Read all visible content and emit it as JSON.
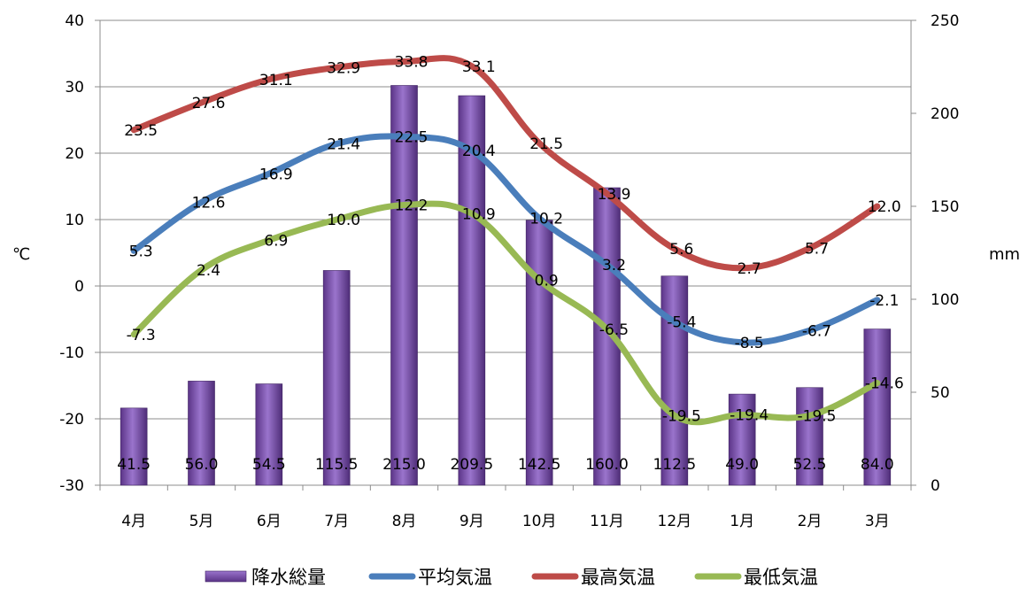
{
  "chart_data": {
    "type": "bar",
    "categories": [
      "4月",
      "5月",
      "6月",
      "7月",
      "8月",
      "9月",
      "10月",
      "11月",
      "12月",
      "1月",
      "2月",
      "3月"
    ],
    "ylabel": "℃",
    "y2label": "mm",
    "ylim": [
      -30,
      40
    ],
    "y2lim": [
      0,
      250
    ],
    "yticks": [
      -30,
      -20,
      -10,
      0,
      10,
      20,
      30,
      40
    ],
    "y2ticks": [
      0,
      50,
      100,
      150,
      200,
      250
    ],
    "grid": true,
    "legend_position": "bottom",
    "series": [
      {
        "name": "降水総量",
        "type": "bar",
        "axis": "right",
        "color": "#7d4fb0",
        "values": [
          41.5,
          56.0,
          54.5,
          115.5,
          215.0,
          209.5,
          142.5,
          160.0,
          112.5,
          49.0,
          52.5,
          84.0
        ],
        "labels": [
          "41.5",
          "56.0",
          "54.5",
          "115.5",
          "215.0",
          "209.5",
          "142.5",
          "160.0",
          "112.5",
          "49.0",
          "52.5",
          "84.0"
        ]
      },
      {
        "name": "平均気温",
        "type": "line",
        "axis": "left",
        "color": "#4a7ebb",
        "values": [
          5.3,
          12.6,
          16.9,
          21.4,
          22.5,
          20.4,
          10.2,
          3.2,
          -5.4,
          -8.5,
          -6.7,
          -2.1
        ],
        "labels": [
          "5.3",
          "12.6",
          "16.9",
          "21.4",
          "22.5",
          "20.4",
          "10.2",
          "3.2",
          "-5.4",
          "-8.5",
          "-6.7",
          "-2.1"
        ]
      },
      {
        "name": "最高気温",
        "type": "line",
        "axis": "left",
        "color": "#be4b48",
        "values": [
          23.5,
          27.6,
          31.1,
          32.9,
          33.8,
          33.1,
          21.5,
          13.9,
          5.6,
          2.7,
          5.7,
          12.0
        ],
        "labels": [
          "23.5",
          "27.6",
          "31.1",
          "32.9",
          "33.8",
          "33.1",
          "21.5",
          "13.9",
          "5.6",
          "2.7",
          "5.7",
          "12.0"
        ]
      },
      {
        "name": "最低気温",
        "type": "line",
        "axis": "left",
        "color": "#98b954",
        "values": [
          -7.3,
          2.4,
          6.9,
          10.0,
          12.2,
          10.9,
          0.9,
          -6.5,
          -19.5,
          -19.4,
          -19.5,
          -14.6
        ],
        "labels": [
          "-7.3",
          "2.4",
          "6.9",
          "10.0",
          "12.2",
          "10.9",
          "0.9",
          "-6.5",
          "-19.5",
          "-19.4",
          "-19.5",
          "-14.6"
        ]
      }
    ]
  }
}
